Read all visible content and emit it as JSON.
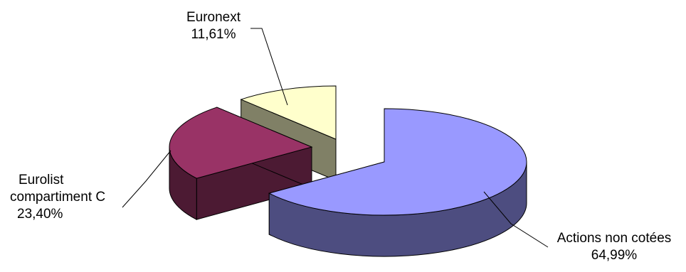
{
  "chart_data": {
    "type": "pie",
    "style": "3d-exploded",
    "legend": "none",
    "slices": [
      {
        "label": "Actions non cotées",
        "value_label": "64,99%",
        "value": 64.99,
        "color": "#9999ff",
        "side_color": "#4d4d80"
      },
      {
        "label": "Eurolist compartiment C",
        "value_label": "23,40%",
        "value": 23.4,
        "color": "#993366",
        "side_color": "#4c1a33"
      },
      {
        "label": "Euronext",
        "value_label": "11,61%",
        "value": 11.61,
        "color": "#ffffcc",
        "side_color": "#808066"
      }
    ]
  }
}
